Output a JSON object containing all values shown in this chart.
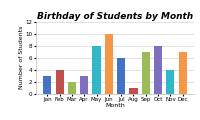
{
  "months": [
    "Jan",
    "Feb",
    "Mar",
    "Apr",
    "May",
    "Jun",
    "Jul",
    "Aug",
    "Sep",
    "Oct",
    "Nov",
    "Dec"
  ],
  "values": [
    3,
    4,
    2,
    3,
    8,
    10,
    6,
    1,
    7,
    8,
    4,
    7
  ],
  "bar_colors": [
    "#4472C4",
    "#C0504D",
    "#9BBB59",
    "#7F6FBE",
    "#31B7C9",
    "#F79646",
    "#4472C4",
    "#C0504D",
    "#9BBB59",
    "#7F6FBE",
    "#31B7C9",
    "#F79646"
  ],
  "title": "Birthday of Students by Month",
  "xlabel": "Month",
  "ylabel": "Number of Students",
  "ylim": [
    0,
    12
  ],
  "yticks": [
    0,
    2,
    4,
    6,
    8,
    10,
    12
  ],
  "bg_color": "#FFFFFF",
  "grid_color": "#CCCCCC",
  "title_fontsize": 6.5,
  "axis_label_fontsize": 4.5,
  "tick_fontsize": 4.0
}
